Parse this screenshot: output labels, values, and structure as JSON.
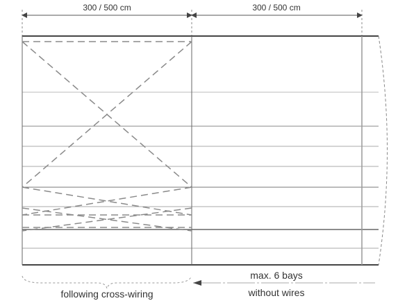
{
  "dimensions": {
    "left_span": "300 / 500 cm",
    "right_span": "300 / 500 cm"
  },
  "captions": {
    "limit_line1": "max. 6 bays",
    "limit_line2": "without wires",
    "cross_wiring": "following cross-wiring"
  },
  "colors": {
    "line_dark": "#555555",
    "line_light": "#b5b5b5",
    "dash": "#8a8a8a",
    "text": "#333333"
  }
}
